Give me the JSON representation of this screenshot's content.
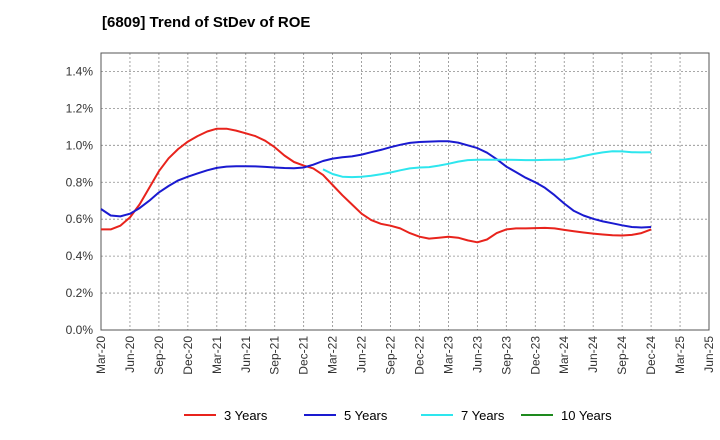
{
  "chart_data": {
    "type": "line",
    "title": "[6809]  Trend of StDev of ROE",
    "xlabel": "",
    "ylabel": "",
    "x_tick_labels": [
      "Mar-20",
      "Jun-20",
      "Sep-20",
      "Dec-20",
      "Mar-21",
      "Jun-21",
      "Sep-21",
      "Dec-21",
      "Mar-22",
      "Jun-22",
      "Sep-22",
      "Dec-22",
      "Mar-23",
      "Jun-23",
      "Sep-23",
      "Dec-23",
      "Mar-24",
      "Jun-24",
      "Sep-24",
      "Dec-24",
      "Mar-25",
      "Jun-25"
    ],
    "y_tick_labels": [
      "0.0%",
      "0.2%",
      "0.4%",
      "0.6%",
      "0.8%",
      "1.0%",
      "1.2%",
      "1.4%"
    ],
    "ylim": [
      0,
      1.5
    ],
    "y_unit": "%",
    "grid": true,
    "legend_position": "bottom",
    "series": [
      {
        "name": "3 Years",
        "color": "#e8231c",
        "values": [
          0.545,
          0.545,
          0.565,
          0.61,
          0.68,
          0.77,
          0.86,
          0.93,
          0.98,
          1.02,
          1.05,
          1.075,
          1.09,
          1.09,
          1.08,
          1.065,
          1.05,
          1.025,
          0.99,
          0.945,
          0.91,
          0.89,
          0.875,
          0.84,
          0.785,
          0.73,
          0.68,
          0.63,
          0.595,
          0.575,
          0.565,
          0.55,
          0.525,
          0.505,
          0.495,
          0.5,
          0.505,
          0.5,
          0.485,
          0.475,
          0.49,
          0.525,
          0.545,
          0.55,
          0.55,
          0.552,
          0.553,
          0.55,
          0.542,
          0.535,
          0.528,
          0.522,
          0.517,
          0.513,
          0.512,
          0.515,
          0.525,
          0.545
        ]
      },
      {
        "name": "5 Years",
        "color": "#1a1ad0",
        "values": [
          0.655,
          0.62,
          0.615,
          0.63,
          0.66,
          0.7,
          0.745,
          0.78,
          0.81,
          0.83,
          0.848,
          0.865,
          0.878,
          0.885,
          0.887,
          0.887,
          0.886,
          0.883,
          0.88,
          0.877,
          0.876,
          0.88,
          0.895,
          0.915,
          0.928,
          0.935,
          0.94,
          0.95,
          0.963,
          0.975,
          0.99,
          1.003,
          1.013,
          1.018,
          1.02,
          1.022,
          1.022,
          1.015,
          1.0,
          0.985,
          0.96,
          0.925,
          0.885,
          0.855,
          0.825,
          0.8,
          0.77,
          0.73,
          0.685,
          0.645,
          0.62,
          0.602,
          0.588,
          0.578,
          0.567,
          0.558,
          0.555,
          0.558
        ]
      },
      {
        "name": "7 Years",
        "color": "#2ee6ee",
        "values": [
          null,
          null,
          null,
          null,
          null,
          null,
          null,
          null,
          null,
          null,
          null,
          null,
          null,
          null,
          null,
          null,
          null,
          null,
          null,
          null,
          null,
          null,
          null,
          0.87,
          0.845,
          0.83,
          0.828,
          0.83,
          0.835,
          0.843,
          0.853,
          0.865,
          0.875,
          0.88,
          0.882,
          0.89,
          0.9,
          0.912,
          0.92,
          0.922,
          0.922,
          0.922,
          0.922,
          0.921,
          0.92,
          0.92,
          0.921,
          0.922,
          0.923,
          0.93,
          0.942,
          0.953,
          0.962,
          0.968,
          0.967,
          0.963,
          0.962,
          0.963
        ]
      },
      {
        "name": "10 Years",
        "color": "#1e8a1e",
        "values": []
      }
    ]
  }
}
